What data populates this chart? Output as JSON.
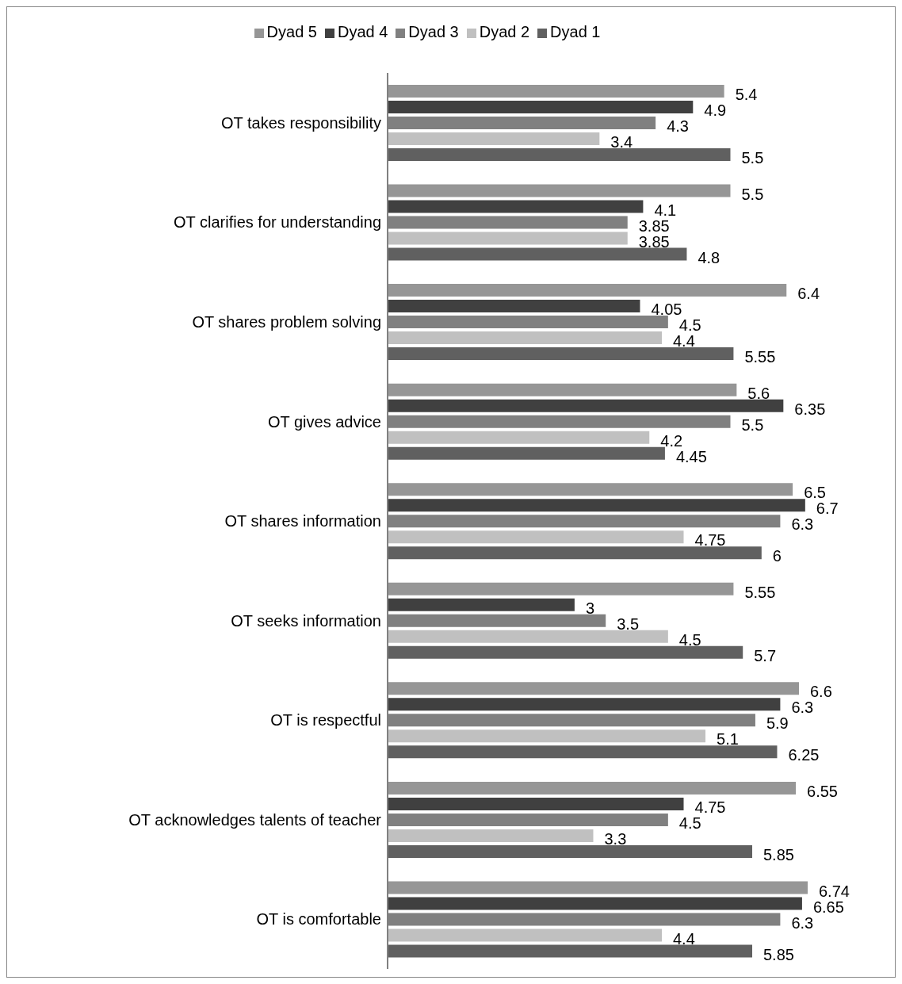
{
  "chart_data": {
    "type": "bar",
    "orientation": "horizontal",
    "data_labels": true,
    "legend": "top",
    "categories": [
      "OT takes responsibility",
      "OT clarifies for understanding",
      "OT shares problem solving",
      "OT gives advice",
      "OT shares information",
      "OT seeks information",
      "OT is respectful",
      "OT acknowledges talents of teacher",
      "OT is comfortable"
    ],
    "series": [
      {
        "name": "Dyad 5",
        "color": "#969696",
        "values": [
          5.4,
          5.5,
          6.4,
          5.6,
          6.5,
          5.55,
          6.6,
          6.55,
          6.74
        ]
      },
      {
        "name": "Dyad 4",
        "color": "#404040",
        "values": [
          4.9,
          4.1,
          4.05,
          6.35,
          6.7,
          3,
          6.3,
          4.75,
          6.65
        ]
      },
      {
        "name": "Dyad 3",
        "color": "#808080",
        "values": [
          4.3,
          3.85,
          4.5,
          5.5,
          6.3,
          3.5,
          5.9,
          4.5,
          6.3
        ]
      },
      {
        "name": "Dyad 2",
        "color": "#c0c0c0",
        "values": [
          3.4,
          3.85,
          4.4,
          4.2,
          4.75,
          4.5,
          5.1,
          3.3,
          4.4
        ]
      },
      {
        "name": "Dyad 1",
        "color": "#606060",
        "values": [
          5.5,
          4.8,
          5.55,
          4.45,
          6,
          5.7,
          6.25,
          5.85,
          5.85
        ]
      }
    ]
  }
}
